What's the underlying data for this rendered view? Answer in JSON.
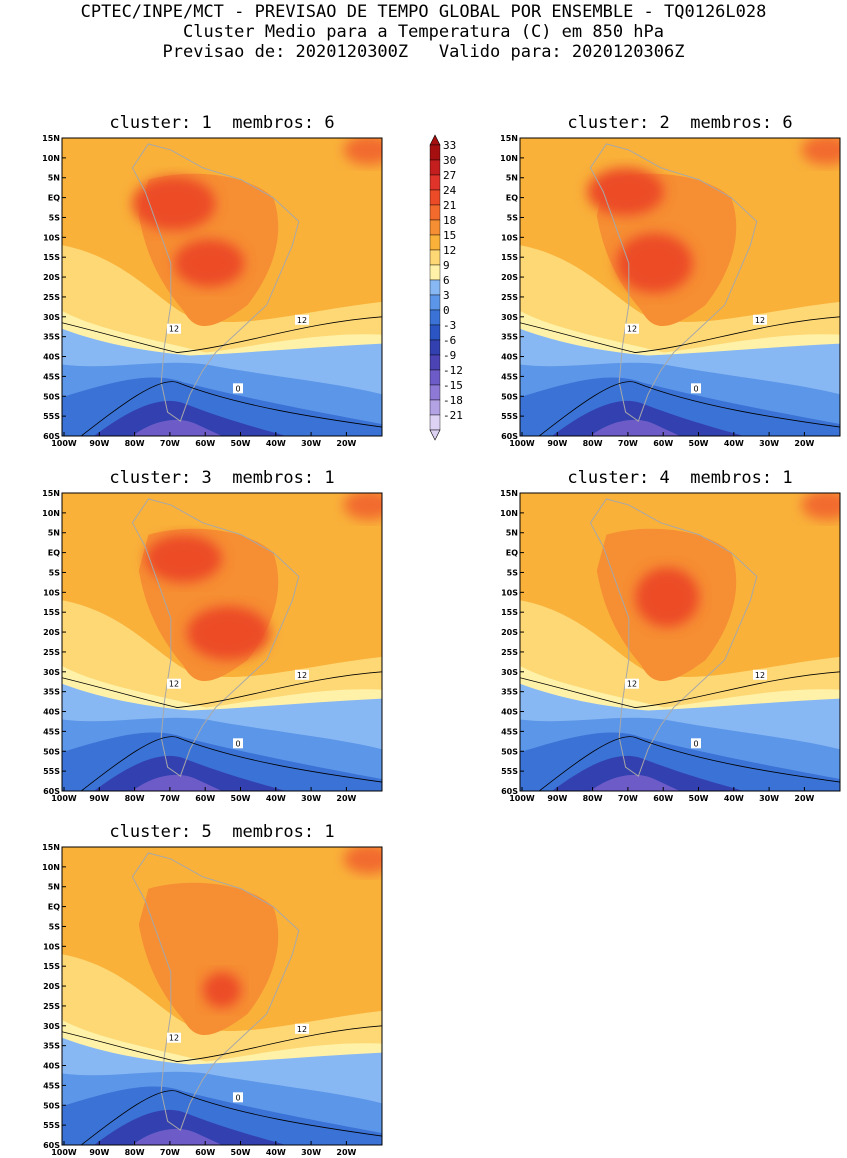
{
  "header": {
    "line1": "CPTEC/INPE/MCT - PREVISAO DE TEMPO GLOBAL POR ENSEMBLE - TQ0126L028",
    "line2": "Cluster Medio para a Temperatura (C) em 850 hPa",
    "line3": "Previsao de: 2020120300Z   Valido para: 2020120306Z"
  },
  "panels": [
    {
      "title": "cluster: 1  membros: 6",
      "hot": [
        [
          0.46,
          0.42,
          0.11,
          0.08
        ],
        [
          0.35,
          0.22,
          0.13,
          0.09
        ]
      ]
    },
    {
      "title": "cluster: 2  membros: 6",
      "hot": [
        [
          0.42,
          0.42,
          0.12,
          0.1
        ],
        [
          0.33,
          0.18,
          0.12,
          0.08
        ]
      ]
    },
    {
      "title": "cluster: 3  membros: 1",
      "hot": [
        [
          0.52,
          0.47,
          0.13,
          0.09
        ],
        [
          0.38,
          0.22,
          0.12,
          0.08
        ]
      ]
    },
    {
      "title": "cluster: 4  membros: 1",
      "hot": [
        [
          0.46,
          0.35,
          0.1,
          0.1
        ]
      ]
    },
    {
      "title": "cluster: 5  membros: 1",
      "hot": [
        [
          0.5,
          0.48,
          0.06,
          0.06
        ]
      ]
    }
  ],
  "axes": {
    "y_ticks": [
      "15N",
      "10N",
      "5N",
      "EQ",
      "5S",
      "10S",
      "15S",
      "20S",
      "25S",
      "30S",
      "35S",
      "40S",
      "45S",
      "50S",
      "55S",
      "60S"
    ],
    "x_ticks": [
      "100W",
      "90W",
      "80W",
      "70W",
      "60W",
      "50W",
      "40W",
      "30W",
      "20W"
    ]
  },
  "contour_labels": {
    "twelve": "12",
    "zero": "0"
  },
  "colorbar": {
    "labels": [
      "33",
      "30",
      "27",
      "24",
      "21",
      "18",
      "15",
      "12",
      "9",
      "6",
      "3",
      "0",
      "-3",
      "-6",
      "-9",
      "-12",
      "-15",
      "-18",
      "-21"
    ],
    "colors": [
      "#a50f0f",
      "#c41e1e",
      "#e0342b",
      "#ec4b27",
      "#f26b2d",
      "#f68e33",
      "#f9b13a",
      "#fed875",
      "#fff2a8",
      "#88b8f3",
      "#5c96e8",
      "#3a72d6",
      "#2a55c2",
      "#3340b0",
      "#4c44b5",
      "#6d5cc8",
      "#8e7ad6",
      "#b4a3e4",
      "#ddd2f3"
    ]
  }
}
